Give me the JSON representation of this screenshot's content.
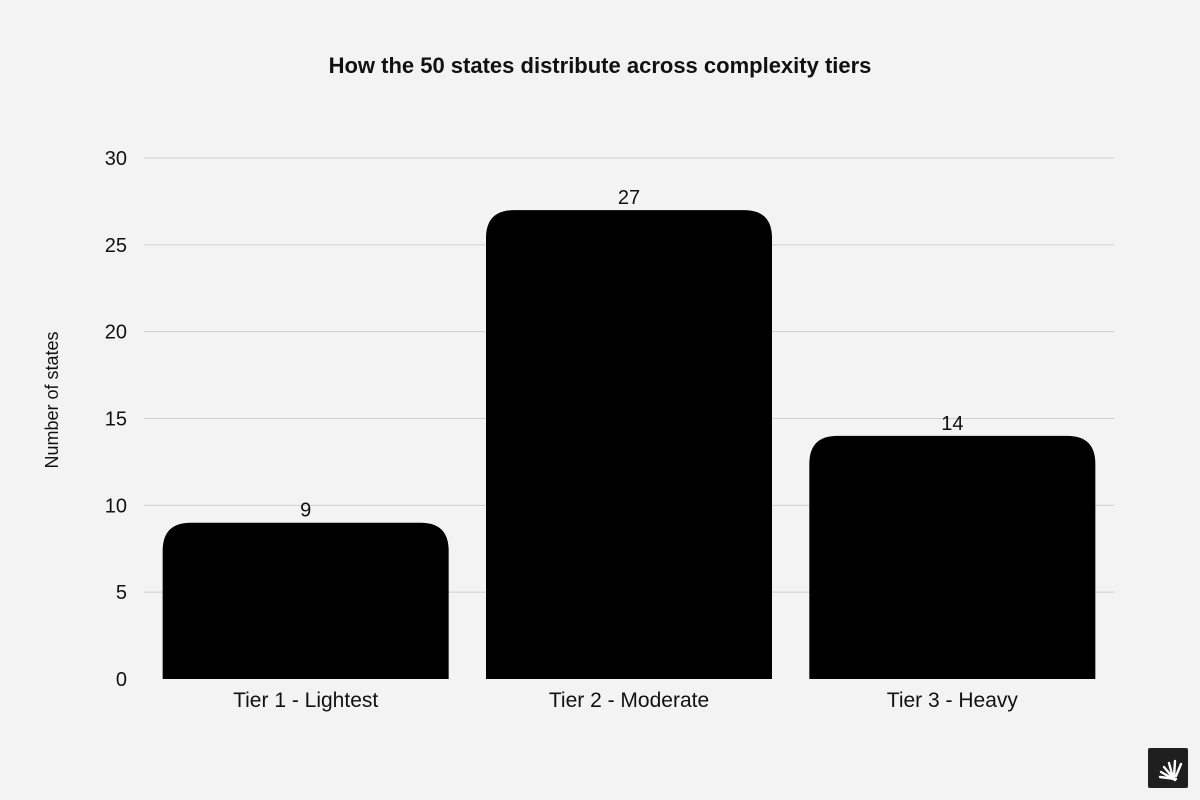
{
  "chart_data": {
    "type": "bar",
    "title": "How the 50 states distribute across complexity tiers",
    "xlabel": "",
    "ylabel": "Number of states",
    "categories": [
      "Tier 1 - Lightest",
      "Tier 2 - Moderate",
      "Tier 3 - Heavy"
    ],
    "values": [
      9,
      27,
      14
    ],
    "data_labels": [
      "9",
      "27",
      "14"
    ],
    "ylim": [
      0,
      30
    ],
    "yticks": [
      0,
      5,
      10,
      15,
      20,
      25,
      30
    ],
    "grid": true,
    "legend": "none",
    "bar_color": "#000000"
  },
  "logo": {
    "icon": "sunburst-logo-icon",
    "background": "#1f1f1f",
    "color": "#ffffff"
  }
}
